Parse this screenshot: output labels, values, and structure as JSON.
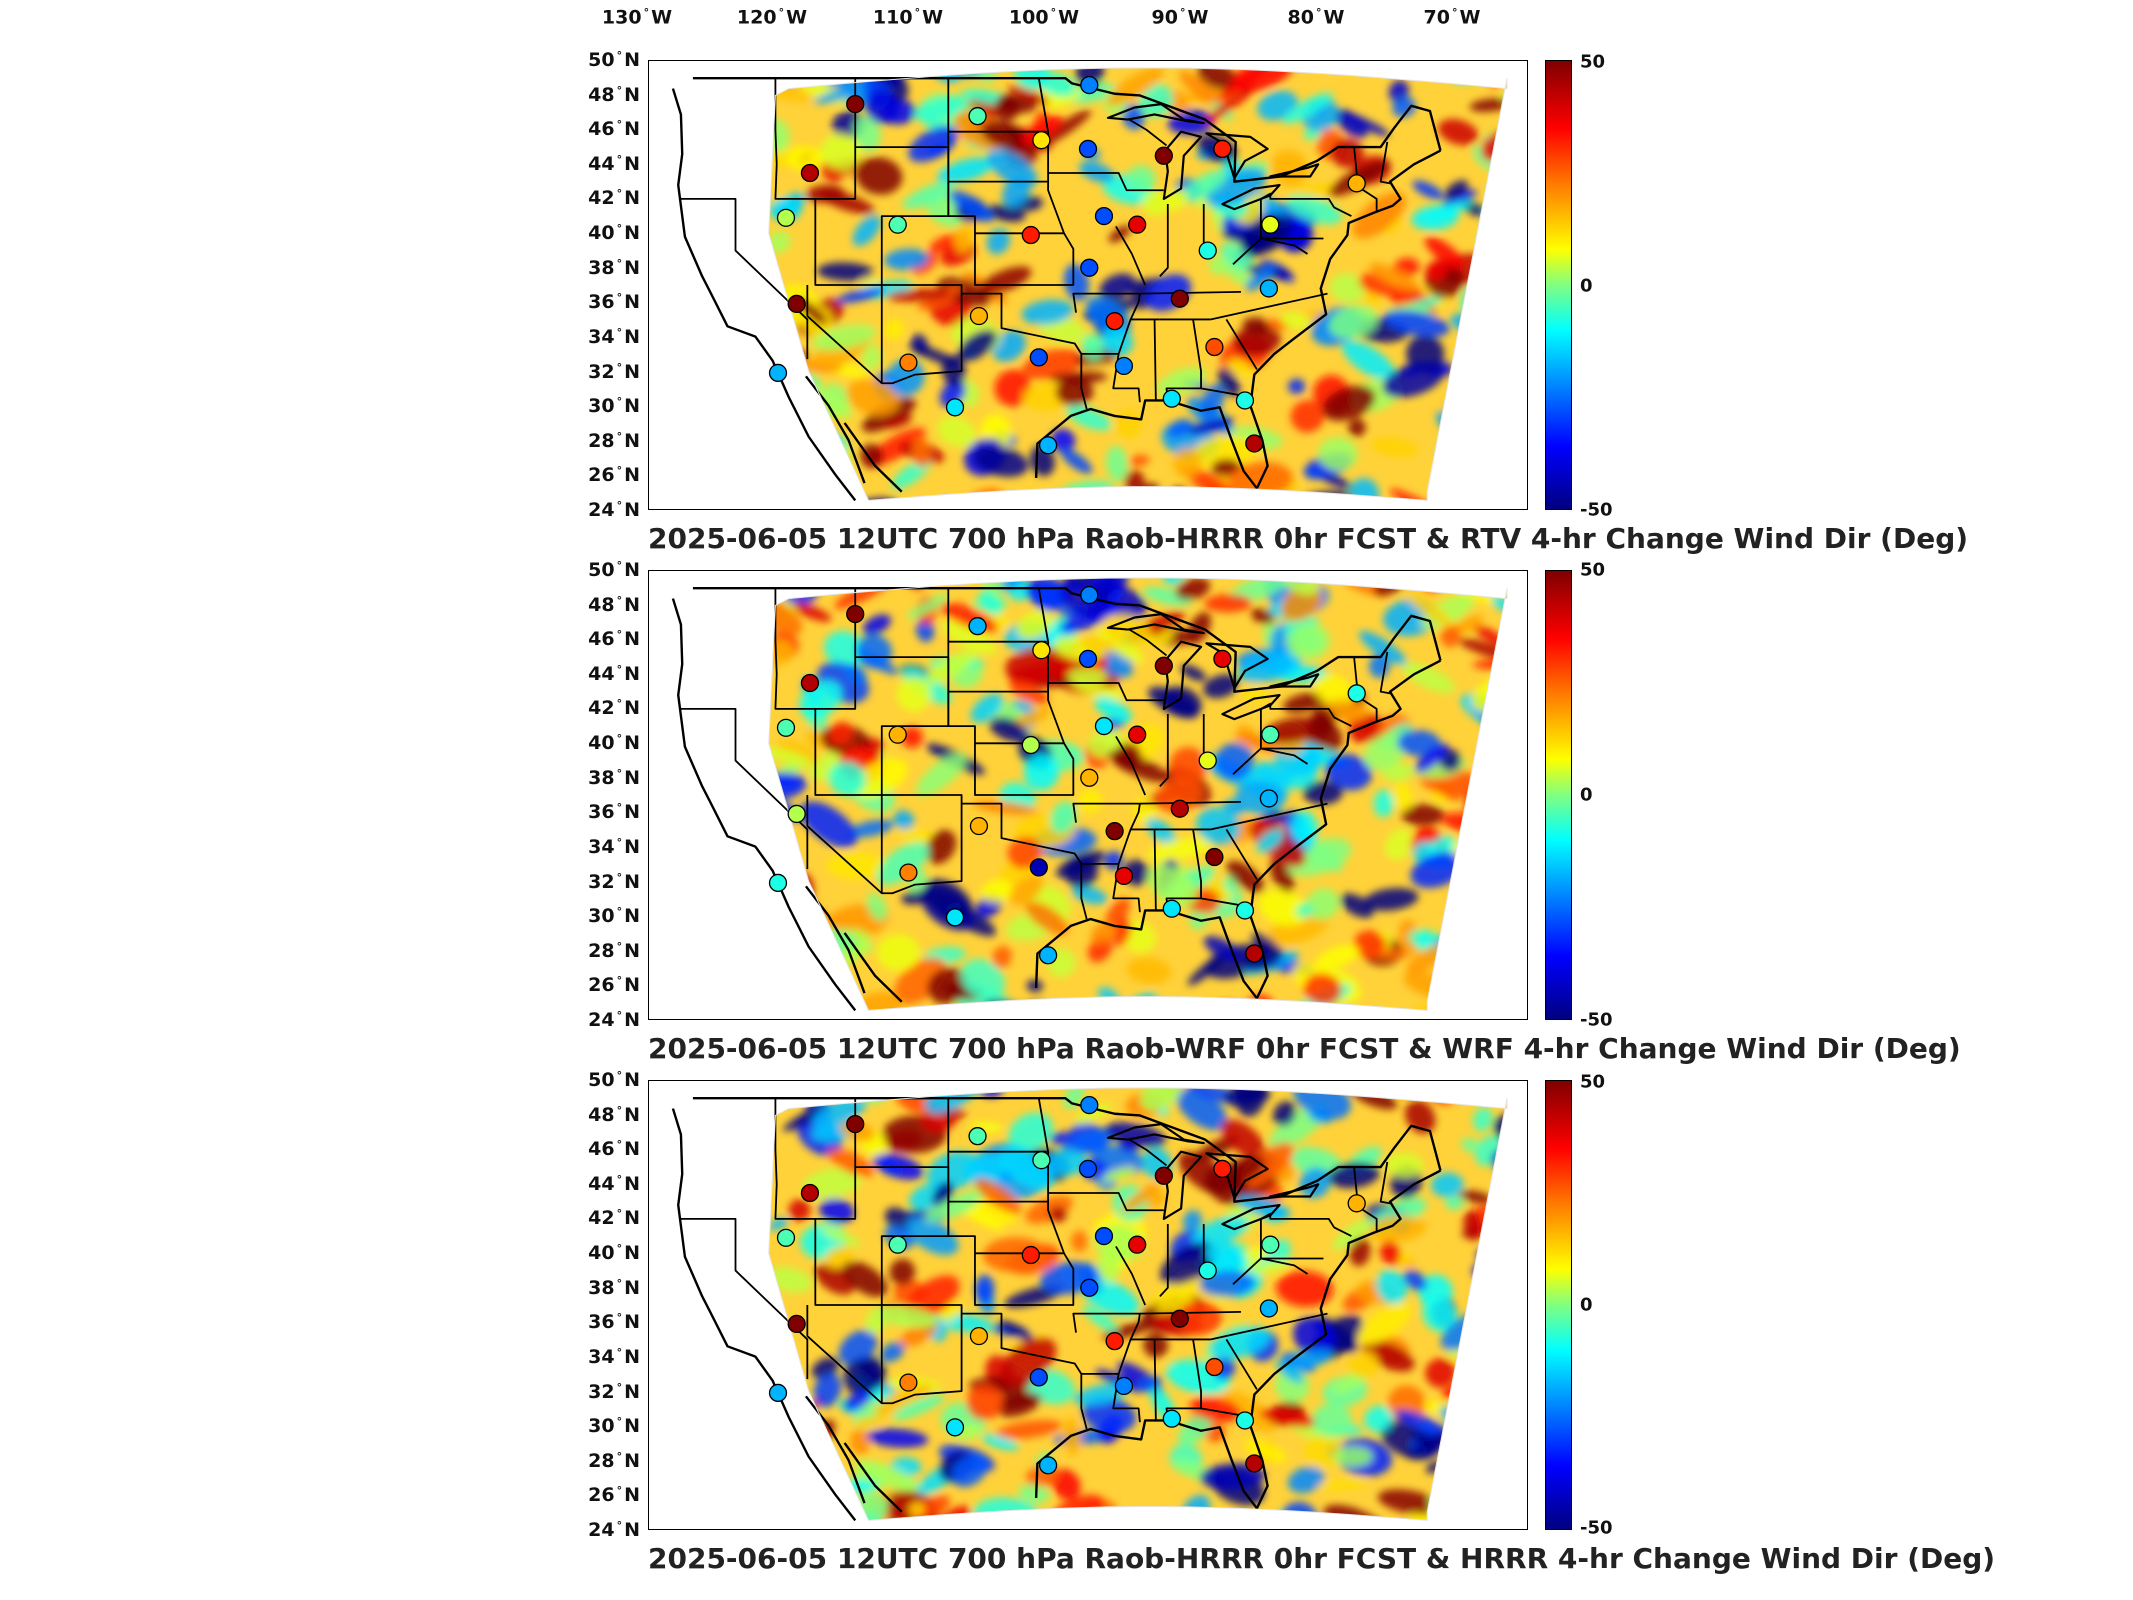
{
  "longitude_labels": [
    {
      "deg": "130",
      "dir": "W"
    },
    {
      "deg": "120",
      "dir": "W"
    },
    {
      "deg": "110",
      "dir": "W"
    },
    {
      "deg": "100",
      "dir": "W"
    },
    {
      "deg": "90",
      "dir": "W"
    },
    {
      "deg": "80",
      "dir": "W"
    },
    {
      "deg": "70",
      "dir": "W"
    }
  ],
  "latitude_labels": [
    {
      "deg": "50",
      "dir": "N"
    },
    {
      "deg": "48",
      "dir": "N"
    },
    {
      "deg": "46",
      "dir": "N"
    },
    {
      "deg": "44",
      "dir": "N"
    },
    {
      "deg": "42",
      "dir": "N"
    },
    {
      "deg": "40",
      "dir": "N"
    },
    {
      "deg": "38",
      "dir": "N"
    },
    {
      "deg": "36",
      "dir": "N"
    },
    {
      "deg": "34",
      "dir": "N"
    },
    {
      "deg": "32",
      "dir": "N"
    },
    {
      "deg": "30",
      "dir": "N"
    },
    {
      "deg": "28",
      "dir": "N"
    },
    {
      "deg": "26",
      "dir": "N"
    },
    {
      "deg": "24",
      "dir": "N"
    }
  ],
  "colorbar": {
    "max_label": "50",
    "mid_label": "0",
    "min_label": "-50",
    "colors": [
      "#800000",
      "#ff0000",
      "#ff8000",
      "#ffff00",
      "#80ff80",
      "#00ffff",
      "#0080ff",
      "#0000ff",
      "#000080"
    ]
  },
  "panels": [
    {
      "title": "2025-06-05 12UTC 700 hPa Raob-HRRR 0hr FCST & RTV 4-hr Change Wind Dir (Deg)"
    },
    {
      "title": "2025-06-05 12UTC 700 hPa Raob-WRF 0hr FCST & WRF 4-hr Change Wind Dir (Deg)"
    },
    {
      "title": "2025-06-05 12UTC 700 hPa Raob-HRRR 0hr FCST & HRRR 4-hr Change Wind Dir (Deg)"
    }
  ],
  "stations": [
    {
      "lon": -111.0,
      "lat": 47.5,
      "values": [
        50,
        50,
        50
      ]
    },
    {
      "lon": -101.8,
      "lat": 46.8,
      "values": [
        -5,
        -20,
        -5
      ]
    },
    {
      "lon": -97.0,
      "lat": 45.4,
      "values": [
        15,
        15,
        -5
      ]
    },
    {
      "lon": -93.4,
      "lat": 48.6,
      "values": [
        -25,
        -25,
        -25
      ]
    },
    {
      "lon": -93.5,
      "lat": 44.9,
      "values": [
        -30,
        -30,
        -30
      ]
    },
    {
      "lon": -83.4,
      "lat": 44.9,
      "values": [
        35,
        40,
        35
      ]
    },
    {
      "lon": -87.8,
      "lat": 44.5,
      "values": [
        50,
        50,
        50
      ]
    },
    {
      "lon": -114.4,
      "lat": 43.5,
      "values": [
        45,
        45,
        45
      ]
    },
    {
      "lon": -107.8,
      "lat": 40.5,
      "values": [
        -5,
        20,
        -5
      ]
    },
    {
      "lon": -116.2,
      "lat": 40.9,
      "values": [
        5,
        -5,
        -5
      ]
    },
    {
      "lon": -92.3,
      "lat": 41.0,
      "values": [
        -30,
        -15,
        -30
      ]
    },
    {
      "lon": -97.8,
      "lat": 39.9,
      "values": [
        35,
        5,
        35
      ]
    },
    {
      "lon": -89.8,
      "lat": 40.5,
      "values": [
        40,
        40,
        40
      ]
    },
    {
      "lon": -84.5,
      "lat": 39.0,
      "values": [
        -10,
        10,
        -10
      ]
    },
    {
      "lon": -79.8,
      "lat": 40.5,
      "values": [
        10,
        -5,
        -5
      ]
    },
    {
      "lon": -73.3,
      "lat": 42.9,
      "values": [
        20,
        -10,
        20
      ]
    },
    {
      "lon": -93.4,
      "lat": 38.0,
      "values": [
        -30,
        20,
        -30
      ]
    },
    {
      "lon": -115.4,
      "lat": 35.9,
      "values": [
        50,
        5,
        50
      ]
    },
    {
      "lon": -101.7,
      "lat": 35.2,
      "values": [
        20,
        20,
        20
      ]
    },
    {
      "lon": -91.5,
      "lat": 34.9,
      "values": [
        35,
        50,
        35
      ]
    },
    {
      "lon": -86.6,
      "lat": 36.2,
      "values": [
        50,
        45,
        50
      ]
    },
    {
      "lon": -79.9,
      "lat": 36.8,
      "values": [
        -20,
        -20,
        -20
      ]
    },
    {
      "lon": -107.0,
      "lat": 32.5,
      "values": [
        25,
        25,
        25
      ]
    },
    {
      "lon": -97.2,
      "lat": 32.8,
      "values": [
        -30,
        -45,
        -30
      ]
    },
    {
      "lon": -90.8,
      "lat": 32.3,
      "values": [
        -25,
        40,
        -25
      ]
    },
    {
      "lon": -84.0,
      "lat": 33.4,
      "values": [
        30,
        50,
        30
      ]
    },
    {
      "lon": -116.8,
      "lat": 31.9,
      "values": [
        -20,
        -10,
        -20
      ]
    },
    {
      "lon": -103.5,
      "lat": 29.9,
      "values": [
        -15,
        -15,
        -15
      ]
    },
    {
      "lon": -96.5,
      "lat": 27.7,
      "values": [
        -20,
        -20,
        -20
      ]
    },
    {
      "lon": -87.2,
      "lat": 30.4,
      "values": [
        -15,
        -15,
        -15
      ]
    },
    {
      "lon": -81.7,
      "lat": 30.3,
      "values": [
        -10,
        -10,
        -10
      ]
    },
    {
      "lon": -81.0,
      "lat": 27.8,
      "values": [
        45,
        45,
        45
      ]
    }
  ]
}
